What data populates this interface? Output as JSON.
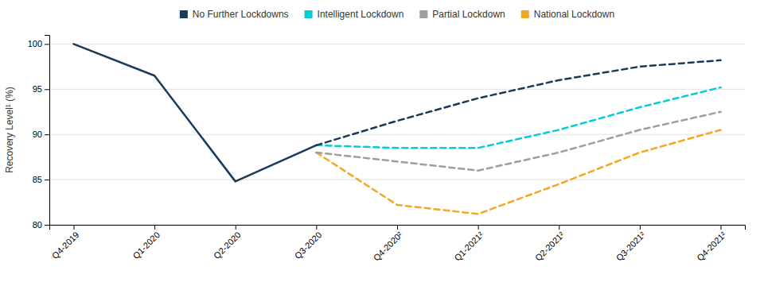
{
  "chart_data": {
    "type": "line",
    "categories": [
      "Q4-2019",
      "Q1-2020",
      "Q2-2020",
      "Q3-2020",
      "Q4-2020²",
      "Q1-2021²",
      "Q2-2021²",
      "Q3-2021²",
      "Q4-2021²"
    ],
    "series": [
      {
        "name": "No Further Lockdowns",
        "color": "#1a3a5c",
        "line_style": "solid",
        "values": [
          100,
          96.5,
          84.8,
          88.8,
          null,
          null,
          null,
          null,
          null
        ]
      },
      {
        "name": "No Further Lockdowns",
        "color": "#1a3a5c",
        "line_style": "dashed",
        "values": [
          null,
          null,
          null,
          88.8,
          91.5,
          94.0,
          96.0,
          97.5,
          98.2
        ]
      },
      {
        "name": "Intelligent Lockdown",
        "color": "#00cdd4",
        "line_style": "dashed",
        "values": [
          null,
          null,
          null,
          88.8,
          88.5,
          88.5,
          90.5,
          93.0,
          95.2
        ]
      },
      {
        "name": "Partial Lockdown",
        "color": "#9e9e9e",
        "line_style": "dashed",
        "values": [
          null,
          null,
          null,
          88.0,
          87.0,
          86.0,
          88.0,
          90.5,
          92.5
        ]
      },
      {
        "name": "National Lockdown",
        "color": "#f5a623",
        "line_style": "dashed",
        "values": [
          null,
          null,
          null,
          88.0,
          82.2,
          81.2,
          84.5,
          88.0,
          90.5
        ]
      }
    ],
    "ylabel": "Recovery Level¹ (%)",
    "ylim": [
      80,
      101
    ],
    "yticks": [
      80,
      85,
      90,
      95,
      100
    ],
    "grid": true,
    "legend": "top"
  }
}
